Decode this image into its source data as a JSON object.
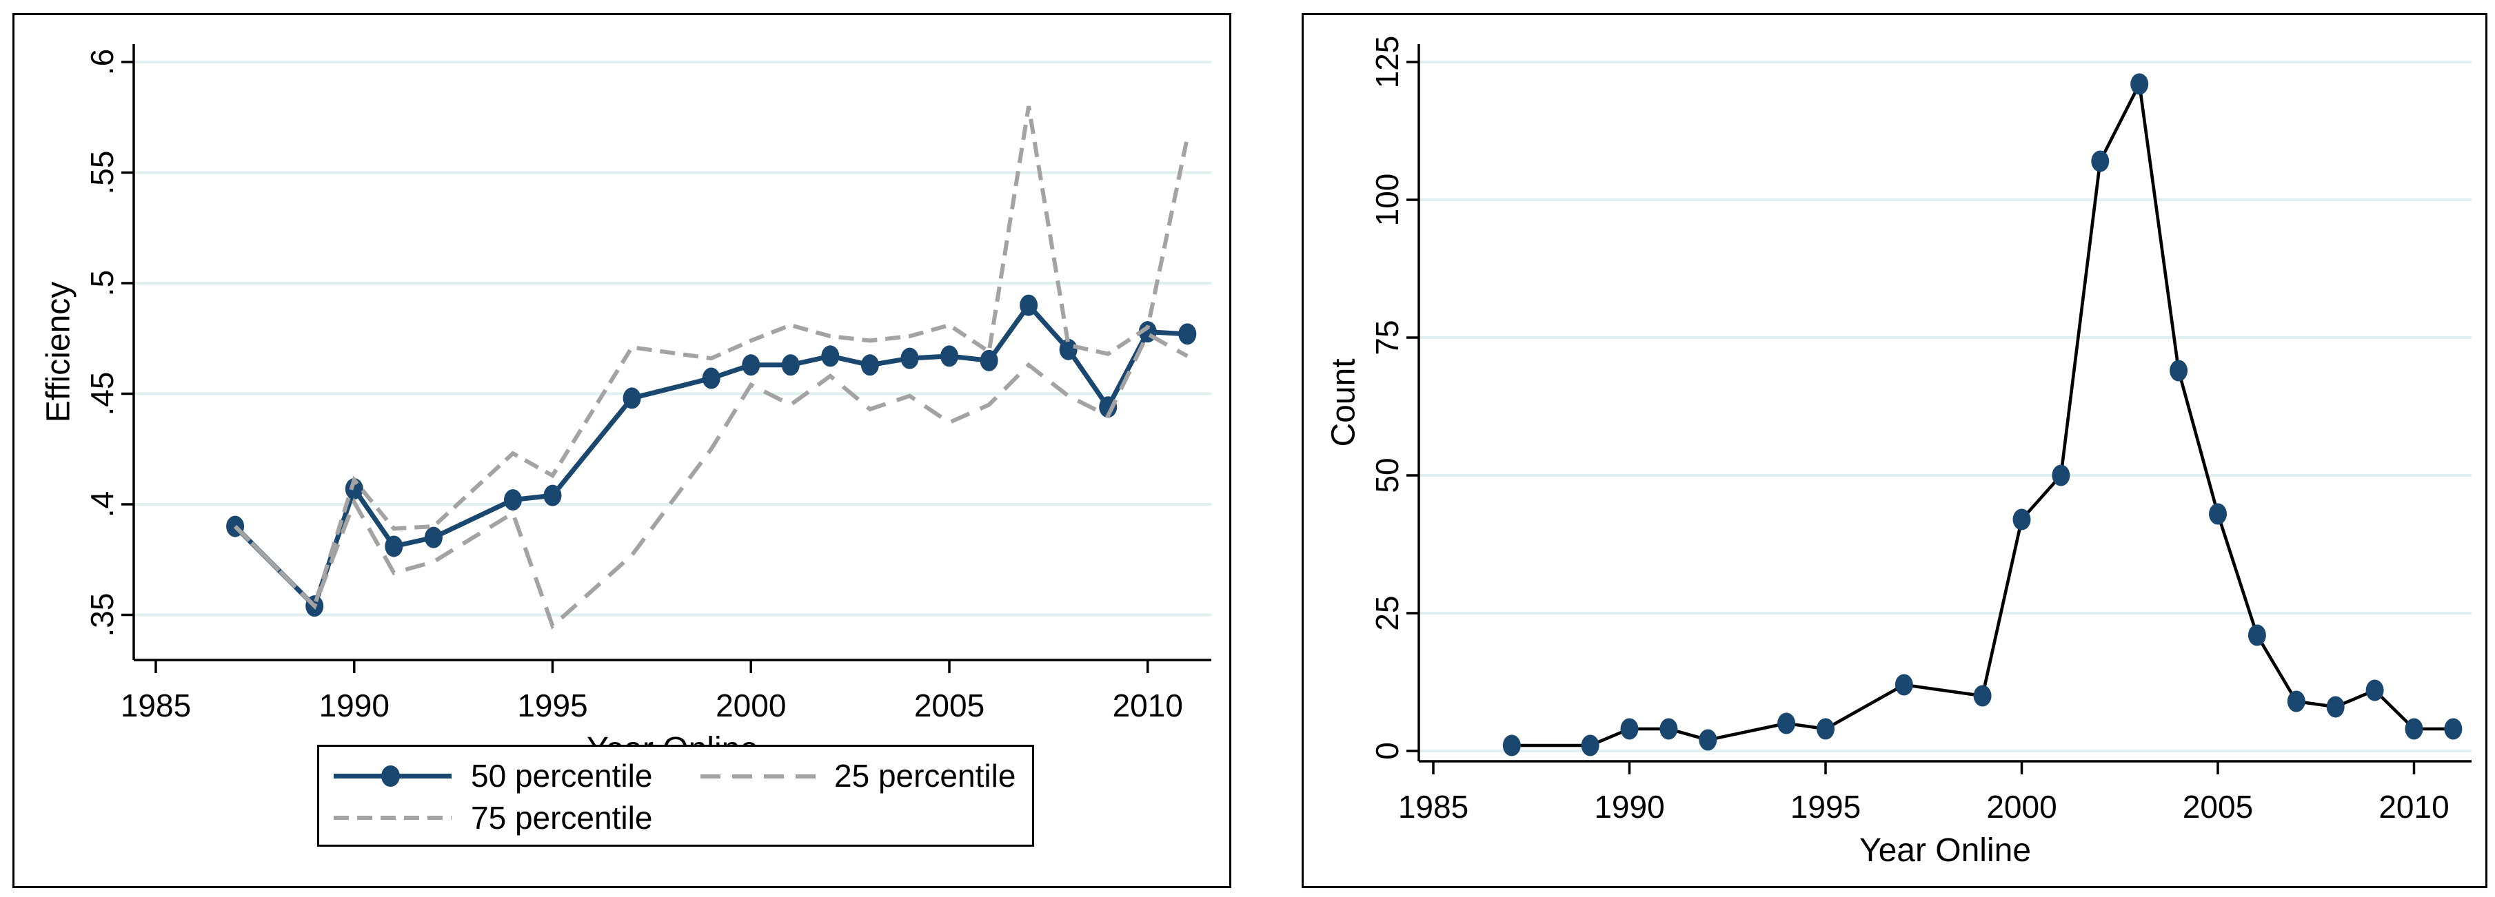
{
  "figure": {
    "left_panel_title": "",
    "right_panel_title": ""
  },
  "colors": {
    "navy": "#1a476f",
    "gray_dashed": "#a3a3a3",
    "black_line": "#000000",
    "gridline": "#e0efef",
    "background": "#ffffff"
  },
  "chart_data": [
    {
      "type": "line",
      "title": "",
      "xlabel": "Year Online",
      "ylabel": "Efficiency",
      "x": [
        1987,
        1989,
        1990,
        1991,
        1992,
        1994,
        1995,
        1997,
        1999,
        2000,
        2001,
        2002,
        2003,
        2004,
        2005,
        2006,
        2007,
        2008,
        2009,
        2010,
        2011
      ],
      "series": [
        {
          "name": "50 percentile",
          "style": "solid",
          "color": "#1a476f",
          "markers": true,
          "values": [
            0.39,
            0.354,
            0.407,
            0.381,
            0.385,
            0.402,
            0.404,
            0.448,
            0.457,
            0.463,
            0.463,
            0.467,
            0.463,
            0.466,
            0.467,
            0.465,
            0.49,
            0.47,
            0.444,
            0.478,
            0.477
          ]
        },
        {
          "name": "25 percentile",
          "style": "dash",
          "color": "#a3a3a3",
          "markers": false,
          "values": [
            0.39,
            0.354,
            0.401,
            0.369,
            0.374,
            0.396,
            0.345,
            0.377,
            0.425,
            0.454,
            0.445,
            0.458,
            0.443,
            0.449,
            0.437,
            0.445,
            0.463,
            0.449,
            0.44,
            0.477,
            0.467
          ]
        },
        {
          "name": "75 percentile",
          "style": "shortdash",
          "color": "#a3a3a3",
          "markers": false,
          "values": [
            0.39,
            0.354,
            0.411,
            0.389,
            0.39,
            0.423,
            0.413,
            0.471,
            0.466,
            0.474,
            0.481,
            0.476,
            0.474,
            0.476,
            0.481,
            0.469,
            0.58,
            0.472,
            0.468,
            0.48,
            0.566
          ]
        }
      ],
      "xticks": [
        1985,
        1990,
        1995,
        2000,
        2005,
        2010
      ],
      "yticks": {
        "values": [
          0.35,
          0.4,
          0.45,
          0.5,
          0.55,
          0.6
        ],
        "labels": [
          ".35",
          ".4",
          ".45",
          ".5",
          ".55",
          ".6"
        ]
      },
      "xlim": [
        1984.4,
        1811.6
      ],
      "ylim": [
        0.33,
        0.615
      ],
      "grid": true,
      "legend": {
        "position": "bottom-center",
        "entries": [
          "50 percentile",
          "25 percentile",
          "75 percentile"
        ]
      }
    },
    {
      "type": "line",
      "title": "",
      "xlabel": "Year Online",
      "ylabel": "Count",
      "x": [
        1987,
        1989,
        1990,
        1991,
        1992,
        1994,
        1995,
        1997,
        1999,
        2000,
        2001,
        2002,
        2003,
        2004,
        2005,
        2006,
        2007,
        2008,
        2009,
        2010,
        2011
      ],
      "series": [
        {
          "name": "Count",
          "style": "solid",
          "color": "#000000",
          "marker_color": "#1a476f",
          "markers": true,
          "values": [
            1,
            1,
            4,
            4,
            2,
            5,
            4,
            12,
            10,
            42,
            50,
            107,
            121,
            69,
            43,
            21,
            9,
            8,
            11,
            4,
            4
          ]
        }
      ],
      "xticks": [
        1985,
        1990,
        1995,
        2000,
        2005,
        2010
      ],
      "yticks": {
        "values": [
          0,
          25,
          50,
          75,
          100,
          125
        ],
        "labels": [
          "0",
          "25",
          "50",
          "75",
          "100",
          "125"
        ]
      },
      "ylim": [
        0,
        131
      ],
      "grid": true,
      "legend": {
        "position": "none",
        "entries": []
      }
    }
  ]
}
